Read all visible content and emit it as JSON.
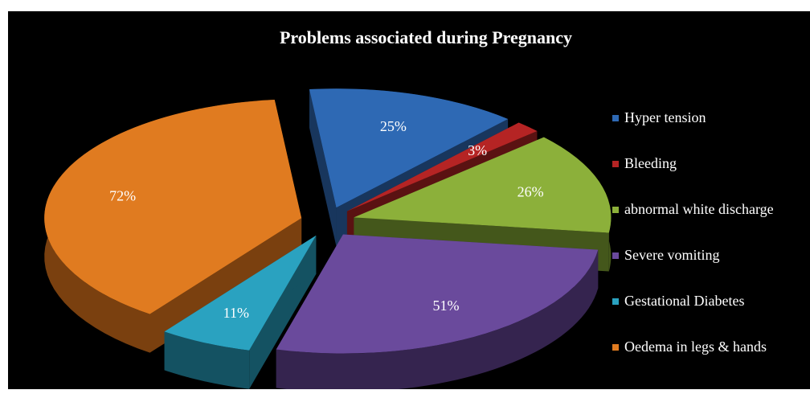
{
  "chart_data": {
    "type": "pie",
    "title": "Problems associated  during Pregnancy",
    "series": [
      {
        "label": "Hyper tension",
        "value": 25,
        "display": "25%",
        "color": "#2e69b4",
        "side": "#18365d"
      },
      {
        "label": "Bleeding",
        "value": 3,
        "display": "3%",
        "color": "#b52424",
        "side": "#5a1212"
      },
      {
        "label": "abnormal white discharge",
        "value": 26,
        "display": "26%",
        "color": "#8cb03a",
        "side": "#44571b"
      },
      {
        "label": "Severe vomiting",
        "value": 51,
        "display": "51%",
        "color": "#6a4a9c",
        "side": "#35244f"
      },
      {
        "label": "Gestational Diabetes",
        "value": 11,
        "display": "11%",
        "color": "#2aa2c0",
        "side": "#145262"
      },
      {
        "label": "Oedema in legs & hands",
        "value": 72,
        "display": "72%",
        "color": "#e07b20",
        "side": "#7a400f"
      }
    ],
    "legend_position": "right"
  }
}
